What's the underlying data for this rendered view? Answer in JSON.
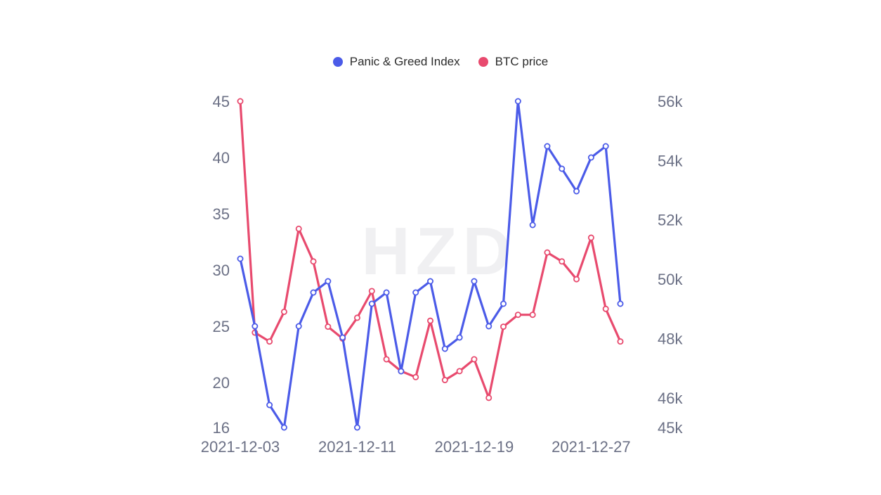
{
  "legend": {
    "panic_label": "Panic & Greed Index",
    "btc_label": "BTC price"
  },
  "colors": {
    "panic": "#4b5be8",
    "btc": "#e84a6e",
    "axis_text": "#6b7085",
    "marker_fill": "#ffffff"
  },
  "watermark": "HZD",
  "chart_data": {
    "type": "line",
    "title": "",
    "xlabel": "",
    "ylabel": "",
    "x": [
      "2021-12-03",
      "2021-12-04",
      "2021-12-05",
      "2021-12-06",
      "2021-12-07",
      "2021-12-08",
      "2021-12-09",
      "2021-12-10",
      "2021-12-11",
      "2021-12-12",
      "2021-12-13",
      "2021-12-14",
      "2021-12-15",
      "2021-12-16",
      "2021-12-17",
      "2021-12-18",
      "2021-12-19",
      "2021-12-20",
      "2021-12-21",
      "2021-12-22",
      "2021-12-23",
      "2021-12-24",
      "2021-12-25",
      "2021-12-26",
      "2021-12-27",
      "2021-12-28",
      "2021-12-29"
    ],
    "x_tick_labels": [
      "2021-12-03",
      "2021-12-11",
      "2021-12-19",
      "2021-12-27"
    ],
    "left_axis": {
      "ticks": [
        16,
        20,
        25,
        30,
        35,
        40,
        45
      ],
      "tick_labels": [
        "16",
        "20",
        "25",
        "30",
        "35",
        "40",
        "45"
      ],
      "ylim": [
        16,
        45
      ]
    },
    "right_axis": {
      "ticks": [
        45000,
        46000,
        48000,
        50000,
        52000,
        54000,
        56000
      ],
      "tick_labels": [
        "45k",
        "46k",
        "48k",
        "50k",
        "52k",
        "54k",
        "56k"
      ],
      "ylim": [
        45000,
        56000
      ]
    },
    "series": [
      {
        "name": "Panic & Greed Index",
        "axis": "left",
        "values": [
          31,
          25,
          18,
          16,
          25,
          28,
          29,
          24,
          16,
          27,
          28,
          21,
          28,
          29,
          23,
          24,
          29,
          25,
          27,
          45,
          34,
          41,
          39,
          37,
          40,
          41,
          27
        ]
      },
      {
        "name": "BTC price",
        "axis": "right",
        "values": [
          56000,
          48200,
          47900,
          48900,
          51700,
          50600,
          48400,
          48000,
          48700,
          49600,
          47300,
          46900,
          46700,
          48600,
          46600,
          46900,
          47300,
          46000,
          48400,
          48800,
          48800,
          50900,
          50600,
          50000,
          51400,
          49000,
          47900
        ]
      }
    ]
  }
}
